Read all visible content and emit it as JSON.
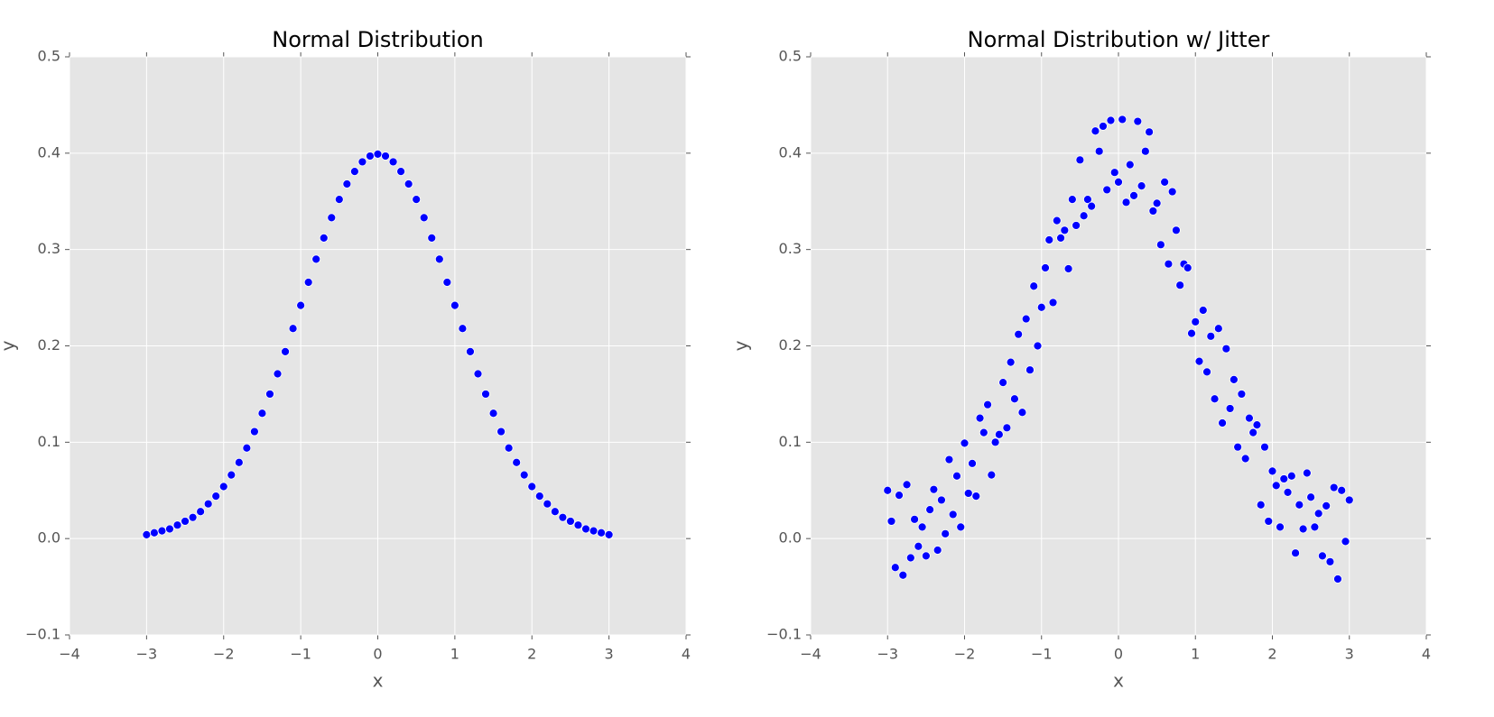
{
  "chart_data": [
    {
      "type": "scatter",
      "title": "Normal Distribution",
      "xlabel": "x",
      "ylabel": "y",
      "color": "#0000ff",
      "grid": true,
      "xlim": [
        -4,
        4
      ],
      "ylim": [
        -0.1,
        0.5
      ],
      "xticks": [
        {
          "value": -4,
          "label": "−4"
        },
        {
          "value": -3,
          "label": "−3"
        },
        {
          "value": -2,
          "label": "−2"
        },
        {
          "value": -1,
          "label": "−1"
        },
        0,
        1,
        2,
        3,
        4
      ],
      "yticks": [
        {
          "value": -0.1,
          "label": "−0.1"
        },
        {
          "value": 0,
          "label": "0.0"
        },
        0.1,
        0.2,
        0.3,
        0.4,
        0.5
      ],
      "x": [
        -3.0,
        -2.9,
        -2.8,
        -2.7,
        -2.6,
        -2.5,
        -2.4,
        -2.3,
        -2.2,
        -2.1,
        -2.0,
        -1.9,
        -1.8,
        -1.7,
        -1.6,
        -1.5,
        -1.4,
        -1.3,
        -1.2,
        -1.1,
        -1.0,
        -0.9,
        -0.8,
        -0.7,
        -0.6,
        -0.5,
        -0.4,
        -0.3,
        -0.2,
        -0.1,
        0.0,
        0.1,
        0.2,
        0.3,
        0.4,
        0.5,
        0.6,
        0.7,
        0.8,
        0.9,
        1.0,
        1.1,
        1.2,
        1.3,
        1.4,
        1.5,
        1.6,
        1.7,
        1.8,
        1.9,
        2.0,
        2.1,
        2.2,
        2.3,
        2.4,
        2.5,
        2.6,
        2.7,
        2.8,
        2.9,
        3.0
      ],
      "values": [
        0.004,
        0.006,
        0.008,
        0.01,
        0.014,
        0.018,
        0.022,
        0.028,
        0.036,
        0.044,
        0.054,
        0.066,
        0.079,
        0.094,
        0.111,
        0.13,
        0.15,
        0.171,
        0.194,
        0.218,
        0.242,
        0.266,
        0.29,
        0.312,
        0.333,
        0.352,
        0.368,
        0.381,
        0.391,
        0.397,
        0.399,
        0.397,
        0.391,
        0.381,
        0.368,
        0.352,
        0.333,
        0.312,
        0.29,
        0.266,
        0.242,
        0.218,
        0.194,
        0.171,
        0.15,
        0.13,
        0.111,
        0.094,
        0.079,
        0.066,
        0.054,
        0.044,
        0.036,
        0.028,
        0.022,
        0.018,
        0.014,
        0.01,
        0.008,
        0.006,
        0.004
      ]
    },
    {
      "type": "scatter",
      "title": "Normal Distribution w/ Jitter",
      "xlabel": "x",
      "ylabel": "y",
      "color": "#0000ff",
      "grid": true,
      "xlim": [
        -4,
        4
      ],
      "ylim": [
        -0.1,
        0.5
      ],
      "xticks": [
        {
          "value": -4,
          "label": "−4"
        },
        {
          "value": -3,
          "label": "−3"
        },
        {
          "value": -2,
          "label": "−2"
        },
        {
          "value": -1,
          "label": "−1"
        },
        0,
        1,
        2,
        3,
        4
      ],
      "yticks": [
        {
          "value": -0.1,
          "label": "−0.1"
        },
        {
          "value": 0,
          "label": "0.0"
        },
        0.1,
        0.2,
        0.3,
        0.4,
        0.5
      ],
      "x": [
        -3.0,
        -2.95,
        -2.9,
        -2.85,
        -2.8,
        -2.75,
        -2.7,
        -2.65,
        -2.6,
        -2.55,
        -2.5,
        -2.45,
        -2.4,
        -2.35,
        -2.3,
        -2.25,
        -2.2,
        -2.15,
        -2.1,
        -2.05,
        -2.0,
        -1.95,
        -1.9,
        -1.85,
        -1.8,
        -1.75,
        -1.7,
        -1.65,
        -1.6,
        -1.55,
        -1.5,
        -1.45,
        -1.4,
        -1.35,
        -1.3,
        -1.25,
        -1.2,
        -1.15,
        -1.1,
        -1.05,
        -1.0,
        -0.95,
        -0.9,
        -0.85,
        -0.8,
        -0.75,
        -0.7,
        -0.65,
        -0.6,
        -0.55,
        -0.5,
        -0.45,
        -0.4,
        -0.35,
        -0.3,
        -0.25,
        -0.2,
        -0.15,
        -0.1,
        -0.05,
        0.0,
        0.05,
        0.1,
        0.15,
        0.2,
        0.25,
        0.3,
        0.35,
        0.4,
        0.45,
        0.5,
        0.55,
        0.6,
        0.65,
        0.7,
        0.75,
        0.8,
        0.85,
        0.9,
        0.95,
        1.0,
        1.05,
        1.1,
        1.15,
        1.2,
        1.25,
        1.3,
        1.35,
        1.4,
        1.45,
        1.5,
        1.55,
        1.6,
        1.65,
        1.7,
        1.75,
        1.8,
        1.85,
        1.9,
        1.95,
        2.0,
        2.05,
        2.1,
        2.15,
        2.2,
        2.25,
        2.3,
        2.35,
        2.4,
        2.45,
        2.5,
        2.55,
        2.6,
        2.65,
        2.7,
        2.75,
        2.8,
        2.85,
        2.9,
        2.95,
        3.0
      ],
      "values": [
        0.05,
        0.018,
        -0.03,
        0.045,
        -0.038,
        0.056,
        -0.02,
        0.02,
        -0.008,
        0.012,
        -0.018,
        0.03,
        0.051,
        -0.012,
        0.04,
        0.005,
        0.082,
        0.025,
        0.065,
        0.012,
        0.099,
        0.047,
        0.078,
        0.044,
        0.125,
        0.11,
        0.139,
        0.066,
        0.1,
        0.108,
        0.162,
        0.115,
        0.183,
        0.145,
        0.212,
        0.131,
        0.228,
        0.175,
        0.262,
        0.2,
        0.24,
        0.281,
        0.31,
        0.245,
        0.33,
        0.312,
        0.32,
        0.28,
        0.352,
        0.325,
        0.393,
        0.335,
        0.352,
        0.345,
        0.423,
        0.402,
        0.428,
        0.362,
        0.434,
        0.38,
        0.37,
        0.435,
        0.349,
        0.388,
        0.356,
        0.433,
        0.366,
        0.402,
        0.422,
        0.34,
        0.348,
        0.305,
        0.37,
        0.285,
        0.36,
        0.32,
        0.263,
        0.285,
        0.281,
        0.213,
        0.225,
        0.184,
        0.237,
        0.173,
        0.21,
        0.145,
        0.218,
        0.12,
        0.197,
        0.135,
        0.165,
        0.095,
        0.15,
        0.083,
        0.125,
        0.11,
        0.118,
        0.035,
        0.095,
        0.018,
        0.07,
        0.055,
        0.012,
        0.062,
        0.048,
        0.065,
        -0.015,
        0.035,
        0.01,
        0.068,
        0.043,
        0.012,
        0.026,
        -0.018,
        0.034,
        -0.024,
        0.053,
        -0.042,
        0.05,
        -0.003,
        0.04
      ]
    }
  ]
}
